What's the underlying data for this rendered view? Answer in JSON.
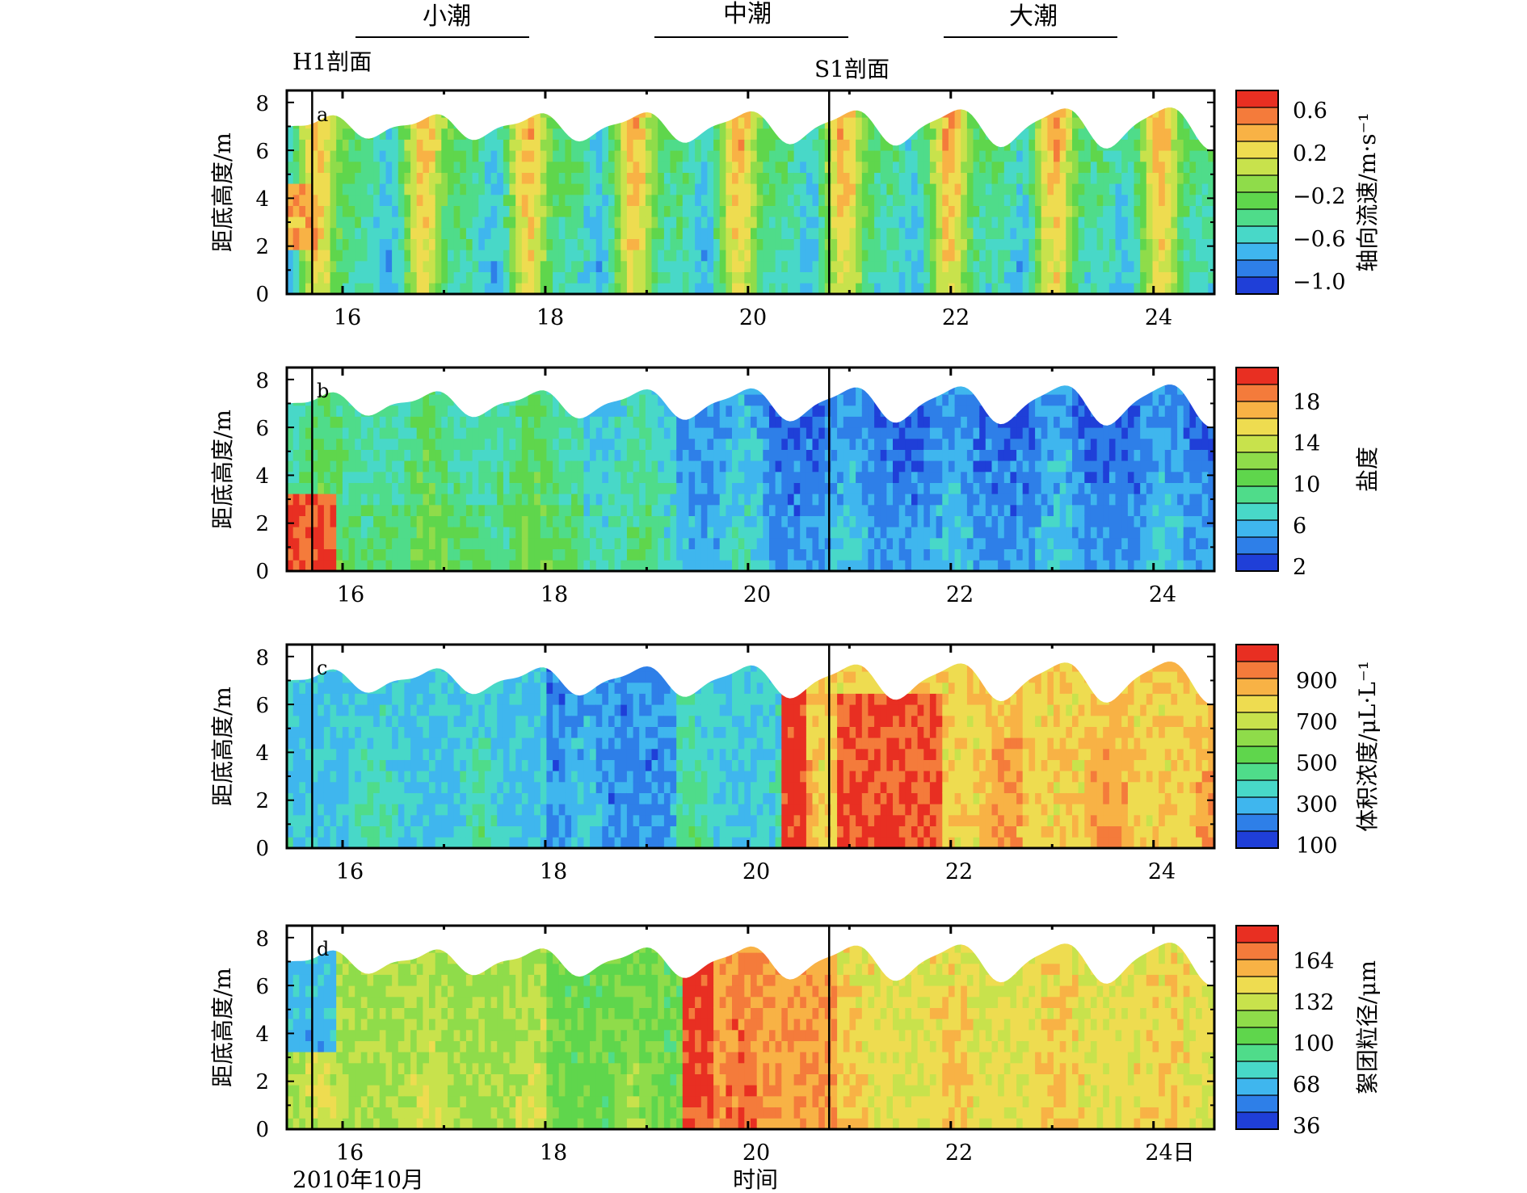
{
  "header": {
    "tides": [
      "小潮",
      "中潮",
      "大潮"
    ],
    "section_left": "H1剖面",
    "section_right": "S1剖面"
  },
  "colors": {
    "palette": [
      "#1f3fd8",
      "#2e7fe8",
      "#3fb6ee",
      "#48d8c8",
      "#4fdc8a",
      "#5fd64c",
      "#8fdc4a",
      "#c8e24c",
      "#eedc50",
      "#f8b245",
      "#f47b3b",
      "#e82f22"
    ],
    "section_line": "#000000",
    "frame": "#000000",
    "background": "#ffffff"
  },
  "chart_data": [
    {
      "type": "heatmap",
      "panel_label": "a",
      "ylabel": "距底高度/m",
      "yticks": [
        "0",
        "2",
        "4",
        "6",
        "8"
      ],
      "ylim": [
        0,
        8.5
      ],
      "xticks": [
        "16",
        "18",
        "20",
        "22",
        "24"
      ],
      "xlim": [
        15.45,
        24.6
      ],
      "colorbar_label": "轴向流速/m·s⁻¹",
      "colorbar_ticks": [
        "0.6",
        "0.2",
        "−0.2",
        "−0.6",
        "−1.0"
      ],
      "section_lines": [
        15.7,
        20.8
      ],
      "surface_elevation": {
        "mean": 7.0,
        "amplitude_neap": 0.35,
        "amplitude_spring": 0.85
      }
    },
    {
      "type": "heatmap",
      "panel_label": "b",
      "ylabel": "距底高度/m",
      "yticks": [
        "0",
        "2",
        "4",
        "6",
        "8"
      ],
      "ylim": [
        0,
        8.5
      ],
      "xticks": [
        "16",
        "18",
        "20",
        "22",
        "24"
      ],
      "xlim": [
        15.45,
        24.6
      ],
      "colorbar_label": "盐度",
      "colorbar_ticks": [
        "18",
        "14",
        "10",
        "6",
        "2"
      ],
      "section_lines": [
        15.7,
        20.8
      ],
      "surface_elevation": {
        "mean": 7.0,
        "amplitude_neap": 0.35,
        "amplitude_spring": 0.85
      }
    },
    {
      "type": "heatmap",
      "panel_label": "c",
      "ylabel": "距底高度/m",
      "yticks": [
        "0",
        "2",
        "4",
        "6",
        "8"
      ],
      "ylim": [
        0,
        8.5
      ],
      "xticks": [
        "16",
        "18",
        "20",
        "22",
        "24"
      ],
      "xlim": [
        15.45,
        24.6
      ],
      "colorbar_label": "体积浓度/μL·L⁻¹",
      "colorbar_ticks": [
        "900",
        "700",
        "500",
        "300",
        "100"
      ],
      "section_lines": [
        15.7,
        20.8
      ],
      "surface_elevation": {
        "mean": 7.0,
        "amplitude_neap": 0.35,
        "amplitude_spring": 0.85
      }
    },
    {
      "type": "heatmap",
      "panel_label": "d",
      "ylabel": "距底高度/m",
      "yticks": [
        "0",
        "2",
        "4",
        "6",
        "8"
      ],
      "ylim": [
        0,
        8.5
      ],
      "xticks": [
        "16",
        "18",
        "20",
        "22",
        "24日"
      ],
      "xlim": [
        15.45,
        24.6
      ],
      "colorbar_label": "絮团粒径/μm",
      "colorbar_ticks": [
        "164",
        "132",
        "100",
        "68",
        "36"
      ],
      "section_lines": [
        15.7,
        20.8
      ],
      "surface_elevation": {
        "mean": 7.0,
        "amplitude_neap": 0.35,
        "amplitude_spring": 0.85
      }
    }
  ],
  "footer": {
    "date_label": "2010年10月",
    "xlabel": "时间"
  }
}
